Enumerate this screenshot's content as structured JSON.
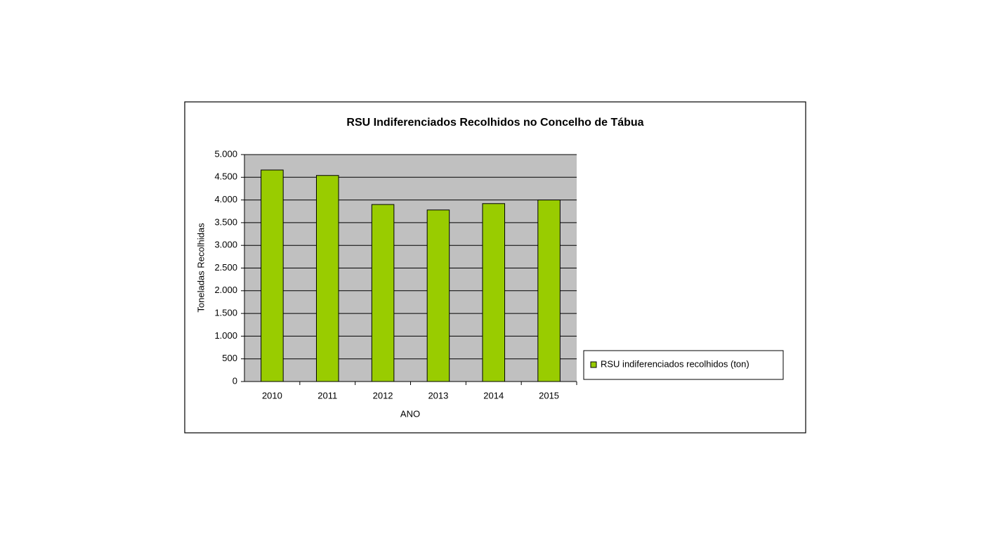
{
  "chart_data": {
    "type": "bar",
    "title": "RSU Indiferenciados Recolhidos no Concelho de Tábua",
    "x_label": "ANO",
    "y_label": "Toneladas Recolhidas",
    "categories": [
      "2010",
      "2011",
      "2012",
      "2013",
      "2014",
      "2015"
    ],
    "series": [
      {
        "name": "RSU indiferenciados recolhidos (ton)",
        "color": "#99cc00",
        "values": [
          4660,
          4540,
          3900,
          3780,
          3920,
          4000
        ]
      }
    ],
    "ylim": [
      0,
      5000
    ],
    "yticks": [
      0,
      500,
      {
        "value": 1000,
        "label": "1.000"
      },
      {
        "value": 1500,
        "label": "1.500"
      },
      {
        "value": 2000,
        "label": "2.000"
      },
      {
        "value": 2500,
        "label": "2.500"
      },
      {
        "value": 3000,
        "label": "3.000"
      },
      {
        "value": 3500,
        "label": "3.500"
      },
      {
        "value": 4000,
        "label": "4.000"
      },
      {
        "value": 4500,
        "label": "4.500"
      },
      {
        "value": 5000,
        "label": "5.000"
      }
    ],
    "grid": true,
    "legend": "right"
  }
}
